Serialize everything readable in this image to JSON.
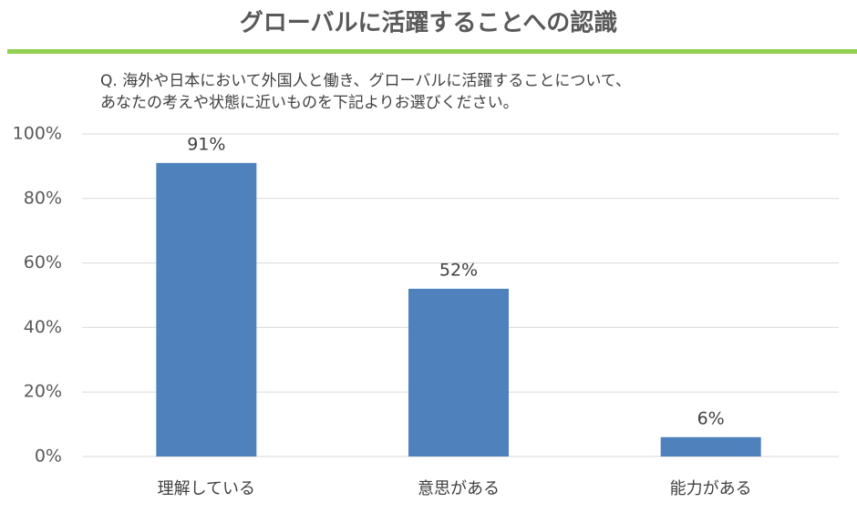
{
  "chart_data": {
    "type": "bar",
    "title": "グローバルに活躍することへの認識",
    "question": [
      "Q. 海外や日本において外国人と働き、グローバルに活躍することについて、",
      "あなたの考えや状態に近いものを下記よりお選びください。"
    ],
    "categories": [
      "理解している",
      "意思がある",
      "能力がある"
    ],
    "values": [
      91,
      52,
      6
    ],
    "value_labels": [
      "91%",
      "52%",
      "6%"
    ],
    "color": "#4f81bd",
    "ylim": [
      0,
      100
    ],
    "yticks": [
      {
        "value": 0,
        "label": "0%"
      },
      {
        "value": 20,
        "label": "20%"
      },
      {
        "value": 40,
        "label": "40%"
      },
      {
        "value": 60,
        "label": "60%"
      },
      {
        "value": 80,
        "label": "80%"
      },
      {
        "value": 100,
        "label": "100%"
      }
    ],
    "grid": true
  }
}
